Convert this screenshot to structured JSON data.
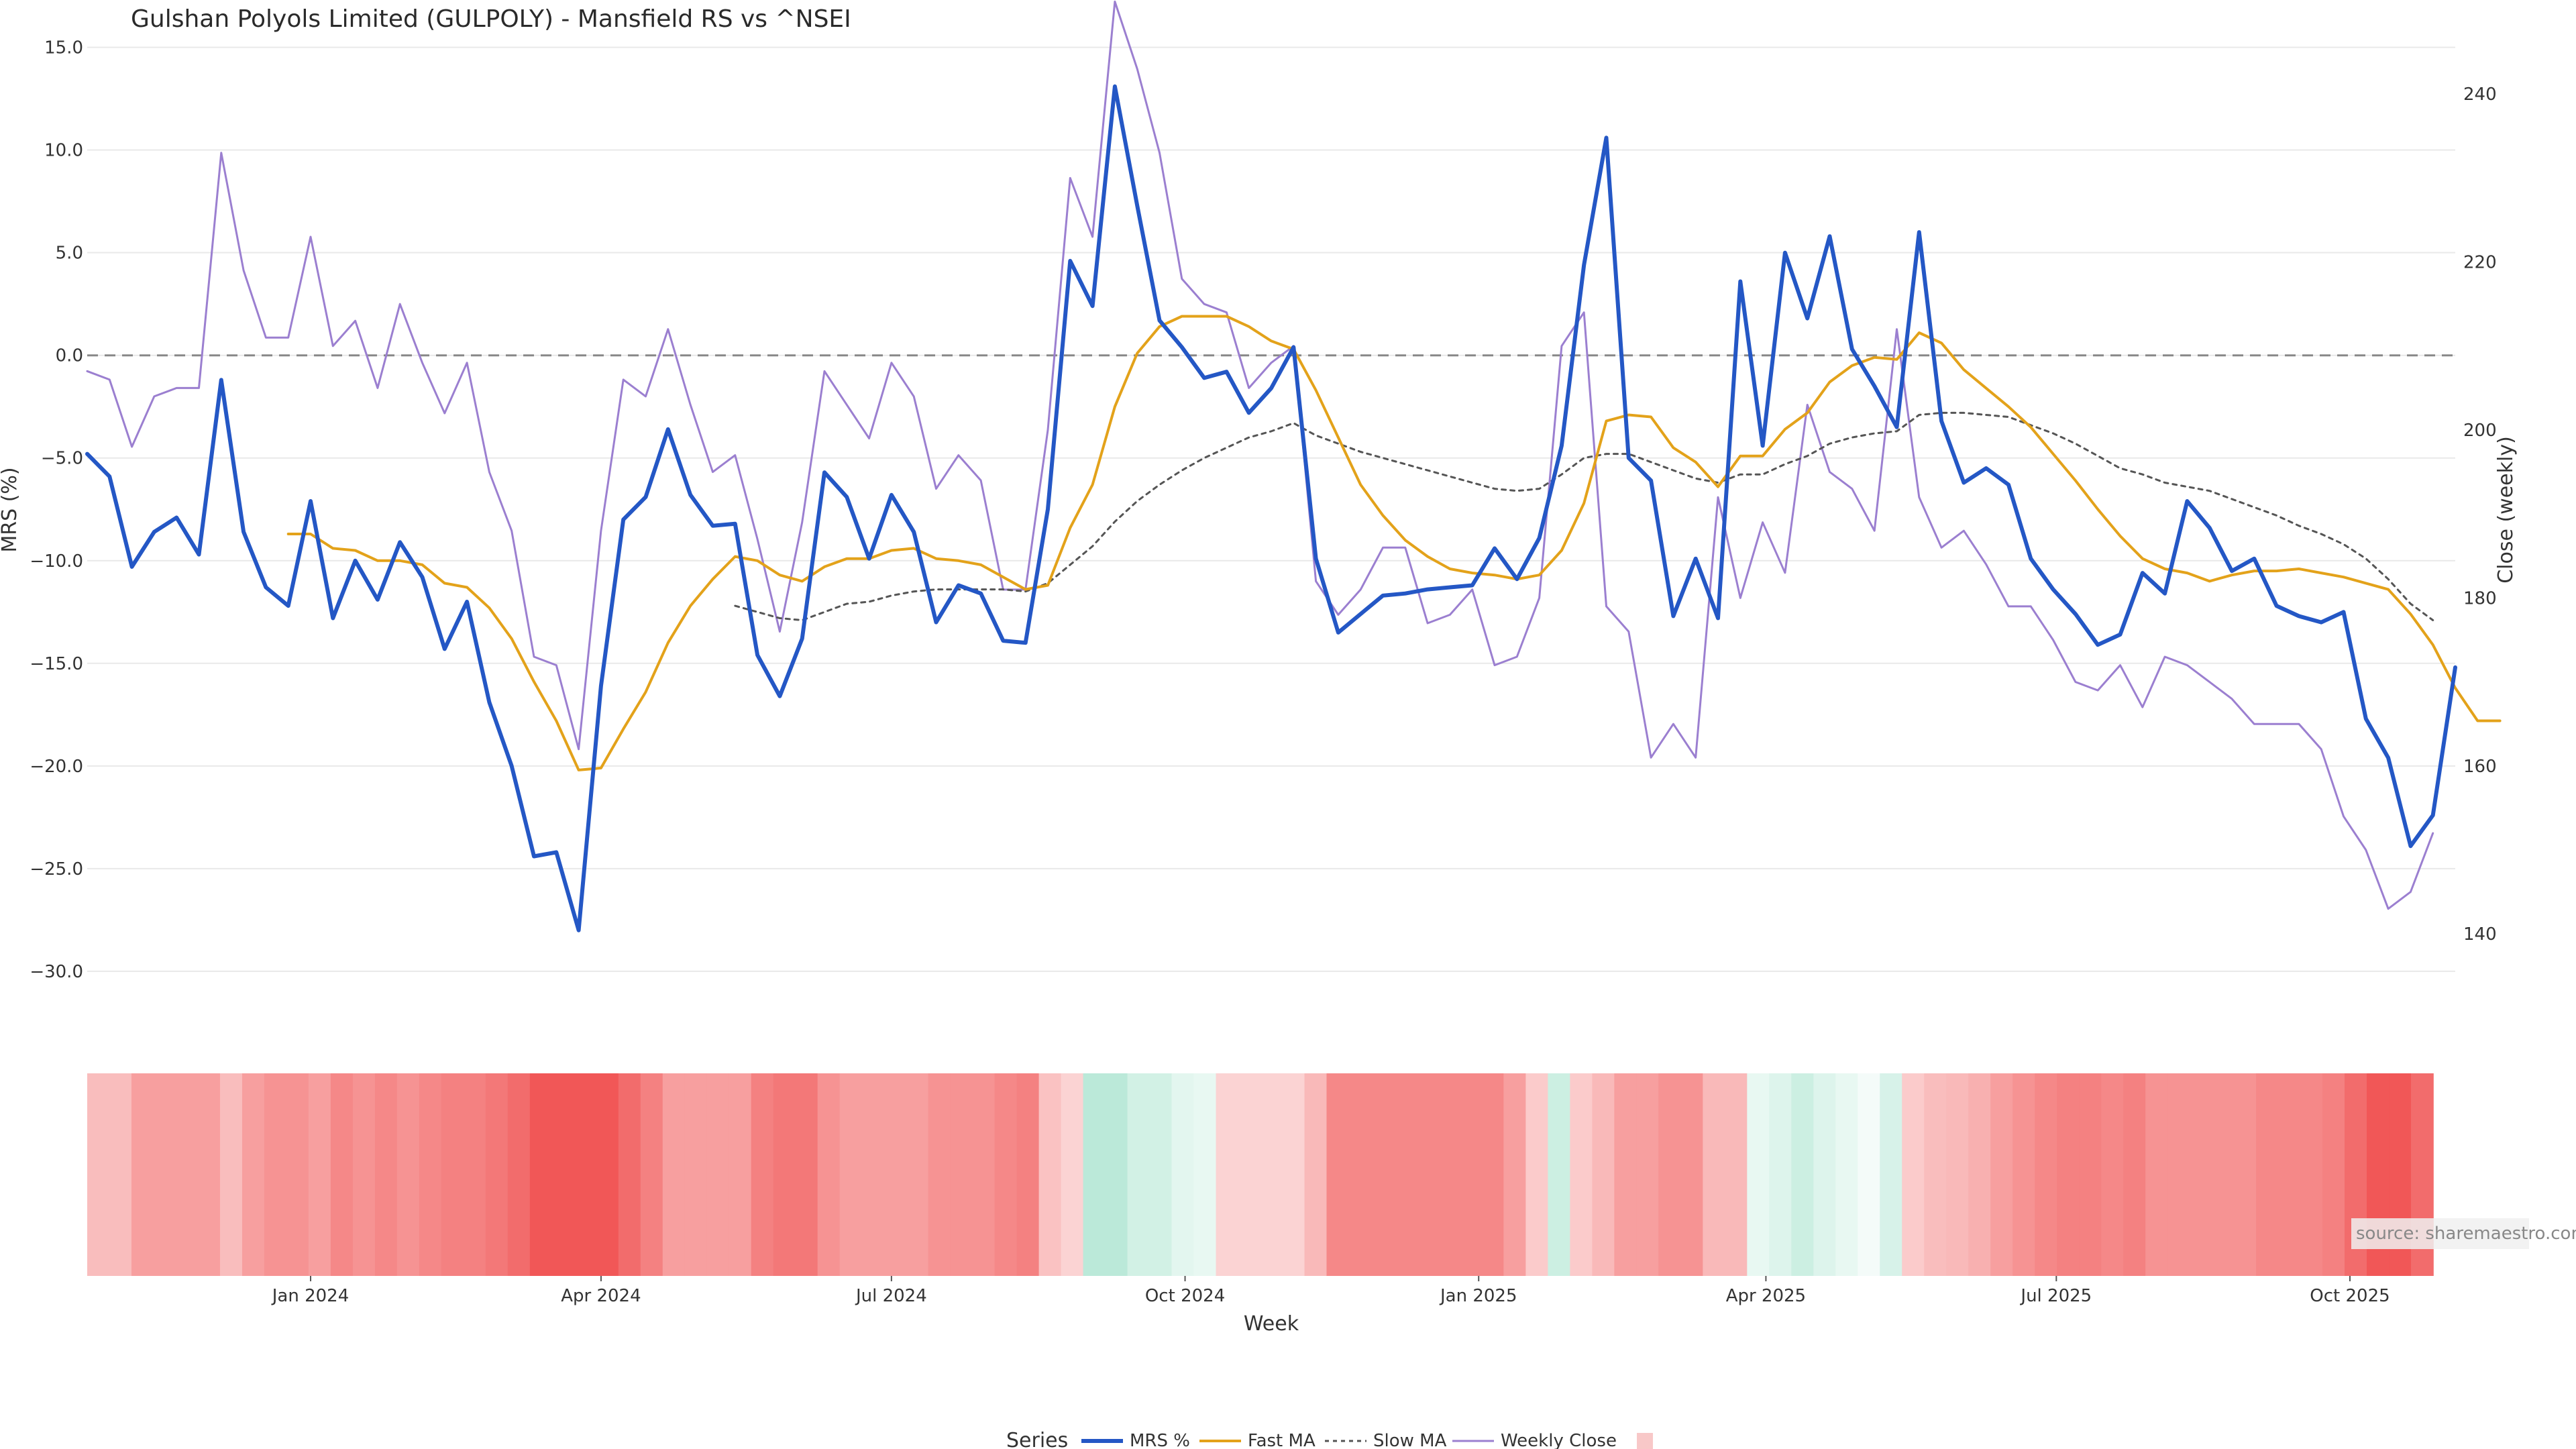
{
  "chart_data": {
    "type": "line",
    "title": "Gulshan Polyols Limited (GULPOLY) - Mansfield RS vs ^NSEI",
    "xlabel": "Week",
    "ylabel": "MRS (%)",
    "y2label": "Close (weekly)",
    "ylim": [
      -33.5,
      16
    ],
    "y2lim": [
      127,
      248
    ],
    "yticks": [
      "15.0",
      "10.0",
      "5.0",
      "0.0",
      "−5.0",
      "−10.0",
      "−15.0",
      "−20.0",
      "−25.0",
      "−30.0"
    ],
    "y2ticks": [
      "240",
      "220",
      "200",
      "180",
      "160",
      "140"
    ],
    "xticks": [
      "Jan 2024",
      "Apr 2024",
      "Jul 2024",
      "Oct 2024",
      "Jan 2025",
      "Apr 2025",
      "Jul 2025",
      "Oct 2025"
    ],
    "x_start": "2023-10-23",
    "grid": true,
    "zero_line": 0,
    "legend_title": "Series",
    "legend_placement": "bottom-center",
    "watermark": "source: sharemaestro.com",
    "colors": {
      "mrs": "#2457c5",
      "fast": "#e3a21a",
      "slow": "#555555",
      "close": "#9b7fd0",
      "neg": "#f05050",
      "pos": "#8edbbf",
      "neutral": "#f8c8c8"
    },
    "series": [
      {
        "name": "MRS %",
        "values": [
          -4.8,
          -5.9,
          -10.3,
          -8.6,
          -7.9,
          -9.7,
          -1.2,
          -8.6,
          -11.3,
          -12.2,
          -7.1,
          -12.8,
          -10.0,
          -11.9,
          -9.1,
          -10.8,
          -14.3,
          -12.0,
          -16.9,
          -20.0,
          -24.4,
          -24.2,
          -28.0,
          -16.1,
          -8.0,
          -6.9,
          -3.6,
          -6.8,
          -8.3,
          -8.2,
          -14.6,
          -16.6,
          -13.8,
          -5.7,
          -6.9,
          -9.9,
          -6.8,
          -8.6,
          -13.0,
          -11.2,
          -11.6,
          -13.9,
          -14.0,
          -7.5,
          4.6,
          2.4,
          13.1,
          7.3,
          1.7,
          0.4,
          -1.1,
          -0.8,
          -2.8,
          -1.6,
          0.4,
          -9.9,
          -13.5,
          -12.6,
          -11.7,
          -11.6,
          -11.4,
          -11.3,
          -11.2,
          -9.4,
          -10.9,
          -8.9,
          -4.4,
          4.4,
          10.6,
          -5.0,
          -6.1,
          -12.7,
          -9.9,
          -12.8,
          3.6,
          -4.4,
          5.0,
          1.8,
          5.8,
          0.3,
          -1.5,
          -3.5,
          6.0,
          -3.2,
          -6.2,
          -5.5,
          -6.3,
          -9.9,
          -11.4,
          -12.6,
          -14.1,
          -13.6,
          -10.6,
          -11.6,
          -7.1,
          -8.4,
          -10.5,
          -9.9,
          -12.2,
          -12.7,
          -13.0,
          -12.5,
          -17.7,
          -19.6,
          -23.9,
          -22.4,
          -15.2
        ]
      },
      {
        "name": "Fast MA",
        "values": [
          null,
          null,
          null,
          null,
          null,
          null,
          null,
          null,
          null,
          -8.7,
          -8.7,
          -9.4,
          -9.5,
          -10.0,
          -10.0,
          -10.2,
          -11.1,
          -11.3,
          -12.3,
          -13.8,
          -15.9,
          -17.8,
          -20.2,
          -20.1,
          -18.2,
          -16.4,
          -14.0,
          -12.2,
          -10.9,
          -9.8,
          -10.0,
          -10.7,
          -11.0,
          -10.3,
          -9.9,
          -9.9,
          -9.5,
          -9.4,
          -9.9,
          -10.0,
          -10.2,
          -10.8,
          -11.4,
          -11.2,
          -8.4,
          -6.3,
          -2.5,
          0.1,
          1.4,
          1.9,
          1.9,
          1.9,
          1.4,
          0.7,
          0.3,
          -1.7,
          -4.0,
          -6.3,
          -7.8,
          -9.0,
          -9.8,
          -10.4,
          -10.6,
          -10.7,
          -10.9,
          -10.7,
          -9.5,
          -7.2,
          -3.2,
          -2.9,
          -3.0,
          -4.5,
          -5.2,
          -6.4,
          -4.9,
          -4.9,
          -3.6,
          -2.8,
          -1.3,
          -0.5,
          -0.1,
          -0.2,
          1.1,
          0.6,
          -0.7,
          -1.6,
          -2.5,
          -3.5,
          -4.8,
          -6.1,
          -7.5,
          -8.8,
          -9.9,
          -10.4,
          -10.6,
          -11.0,
          -10.7,
          -10.5,
          -10.5,
          -10.4,
          -10.6,
          -10.8,
          -11.1,
          -11.4,
          -12.6,
          -14.1,
          -16.2,
          -17.8,
          -17.8
        ]
      },
      {
        "name": "Slow MA",
        "values": [
          null,
          null,
          null,
          null,
          null,
          null,
          null,
          null,
          null,
          null,
          null,
          null,
          null,
          null,
          null,
          null,
          null,
          null,
          null,
          null,
          null,
          null,
          null,
          null,
          null,
          null,
          null,
          null,
          null,
          -12.2,
          -12.5,
          -12.8,
          -12.9,
          -12.5,
          -12.1,
          -12.0,
          -11.7,
          -11.5,
          -11.4,
          -11.4,
          -11.4,
          -11.4,
          -11.5,
          -11.1,
          -10.2,
          -9.3,
          -8.1,
          -7.1,
          -6.3,
          -5.6,
          -5.0,
          -4.5,
          -4.0,
          -3.7,
          -3.3,
          -3.9,
          -4.3,
          -4.7,
          -5.0,
          -5.3,
          -5.6,
          -5.9,
          -6.2,
          -6.5,
          -6.6,
          -6.5,
          -5.8,
          -5.0,
          -4.8,
          -4.8,
          -5.2,
          -5.6,
          -6.0,
          -6.2,
          -5.8,
          -5.8,
          -5.3,
          -4.9,
          -4.3,
          -4.0,
          -3.8,
          -3.7,
          -2.9,
          -2.8,
          -2.8,
          -2.9,
          -3.0,
          -3.4,
          -3.8,
          -4.3,
          -4.9,
          -5.5,
          -5.8,
          -6.2,
          -6.4,
          -6.6,
          -7.0,
          -7.4,
          -7.8,
          -8.3,
          -8.7,
          -9.2,
          -9.9,
          -10.9,
          -12.1,
          -12.9
        ]
      },
      {
        "name": "Weekly Close",
        "axis": "right",
        "values": [
          207,
          206,
          198,
          204,
          205,
          205,
          233,
          219,
          211,
          211,
          223,
          210,
          213,
          205,
          215,
          208,
          202,
          208,
          195,
          188,
          173,
          172,
          162,
          188,
          206,
          204,
          212,
          203,
          195,
          197,
          187,
          176,
          189,
          207,
          203,
          199,
          208,
          204,
          193,
          197,
          194,
          181,
          181,
          200,
          230,
          223,
          251,
          243,
          233,
          218,
          215,
          214,
          205,
          208,
          210,
          182,
          178,
          181,
          186,
          186,
          177,
          178,
          181,
          172,
          173,
          180,
          210,
          214,
          179,
          176,
          161,
          165,
          161,
          192,
          180,
          189,
          183,
          203,
          195,
          193,
          188,
          212,
          192,
          186,
          188,
          184,
          179,
          179,
          175,
          170,
          169,
          172,
          167,
          173,
          172,
          170,
          168,
          165,
          165,
          165,
          162,
          154,
          150,
          143,
          145,
          152
        ]
      },
      {
        "name": "",
        "type": "heatmap-strip",
        "values": [
          0.38,
          0.38,
          0.55,
          0.55,
          0.55,
          0.55,
          0.38,
          0.55,
          0.62,
          0.62,
          0.55,
          0.68,
          0.62,
          0.68,
          0.62,
          0.68,
          0.72,
          0.72,
          0.77,
          0.84,
          0.96,
          0.96,
          0.96,
          0.96,
          0.84,
          0.72,
          0.55,
          0.55,
          0.55,
          0.55,
          0.72,
          0.77,
          0.77,
          0.62,
          0.55,
          0.55,
          0.55,
          0.55,
          0.62,
          0.62,
          0.62,
          0.68,
          0.72,
          0.35,
          0.25,
          -0.6,
          -0.6,
          -0.4,
          -0.4,
          -0.25,
          -0.2,
          0.25,
          0.25,
          0.25,
          0.25,
          0.4,
          0.68,
          0.68,
          0.68,
          0.68,
          0.68,
          0.68,
          0.68,
          0.68,
          0.55,
          0.3,
          -0.45,
          0.3,
          0.4,
          0.55,
          0.55,
          0.62,
          0.62,
          0.4,
          0.4,
          -0.2,
          -0.3,
          -0.45,
          -0.3,
          -0.2,
          -0.1,
          -0.35,
          0.3,
          0.38,
          0.4,
          0.45,
          0.55,
          0.62,
          0.68,
          0.72,
          0.72,
          0.68,
          0.72,
          0.62,
          0.62,
          0.62,
          0.62,
          0.62,
          0.68,
          0.68,
          0.68,
          0.72,
          0.84,
          0.96,
          0.96,
          0.84
        ]
      }
    ]
  }
}
